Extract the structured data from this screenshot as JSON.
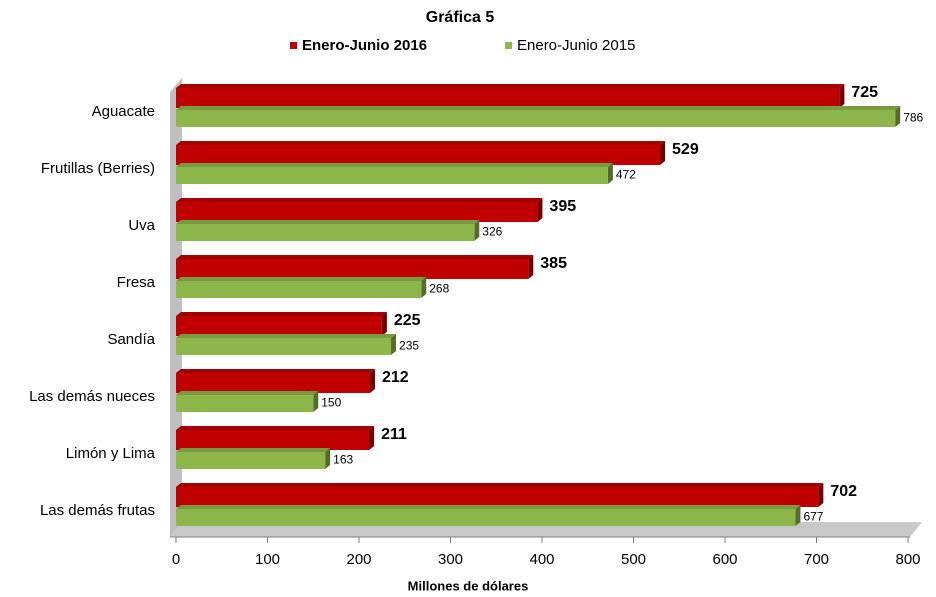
{
  "chart_data": {
    "type": "bar",
    "orientation": "horizontal",
    "title": "Gráfica 5",
    "categories": [
      "Aguacate",
      "Frutillas (Berries)",
      "Uva",
      "Fresa",
      "Sandía",
      "Las demás nueces",
      "Limón y Lima",
      "Las demás frutas"
    ],
    "series": [
      {
        "name": "Enero-Junio 2016",
        "color": "#c00000",
        "values": [
          725,
          529,
          395,
          385,
          225,
          212,
          211,
          702
        ]
      },
      {
        "name": "Enero-Junio 2015",
        "color": "#8db64a",
        "values": [
          786,
          472,
          326,
          268,
          235,
          150,
          163,
          677
        ]
      }
    ],
    "xlim": [
      0,
      800
    ],
    "xticks": [
      0,
      100,
      200,
      300,
      400,
      500,
      600,
      700,
      800
    ],
    "x_label": "Millones de dólares",
    "legend": "top",
    "grid": false
  }
}
